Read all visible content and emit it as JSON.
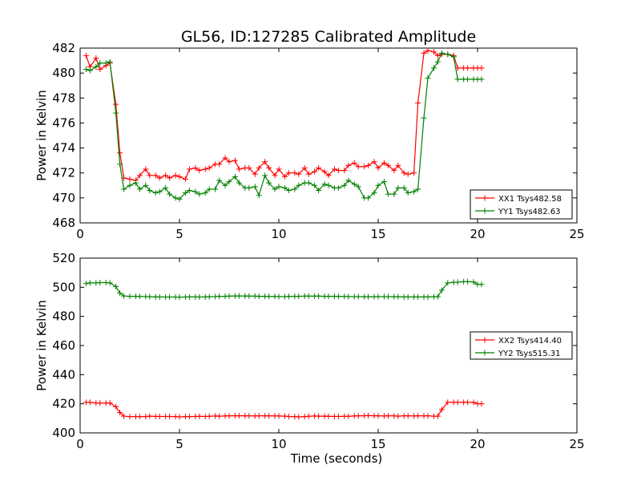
{
  "figure_title": "GL56, ID:127285 Calibrated Amplitude",
  "colors": {
    "red": "#ff0000",
    "green": "#008000"
  },
  "chart_data": [
    {
      "type": "line",
      "title": "GL56, ID:127285 Calibrated Amplitude",
      "xlabel": "",
      "ylabel": "Power in Kelvin",
      "xlim": [
        0,
        25
      ],
      "ylim": [
        468,
        482
      ],
      "xticks": [
        0,
        5,
        10,
        15,
        20,
        25
      ],
      "yticks": [
        468,
        470,
        472,
        474,
        476,
        478,
        480,
        482
      ],
      "legend_position": "lower-right",
      "series": [
        {
          "name": "XX1 Tsys482.58",
          "color": "#ff0000",
          "x": [
            0.3,
            0.5,
            0.8,
            1.0,
            1.3,
            1.5,
            1.8,
            2.0,
            2.2,
            2.5,
            2.8,
            3.0,
            3.3,
            3.5,
            3.8,
            4.0,
            4.3,
            4.5,
            4.8,
            5.0,
            5.3,
            5.5,
            5.8,
            6.0,
            6.3,
            6.5,
            6.8,
            7.0,
            7.3,
            7.5,
            7.8,
            8.0,
            8.3,
            8.5,
            8.8,
            9.0,
            9.3,
            9.5,
            9.8,
            10.0,
            10.3,
            10.5,
            10.8,
            11.0,
            11.3,
            11.5,
            11.8,
            12.0,
            12.3,
            12.5,
            12.8,
            13.0,
            13.3,
            13.5,
            13.8,
            14.0,
            14.3,
            14.5,
            14.8,
            15.0,
            15.3,
            15.5,
            15.8,
            16.0,
            16.3,
            16.5,
            16.8,
            17.0,
            17.3,
            17.5,
            17.8,
            18.0,
            18.2,
            18.5,
            18.8,
            19.0,
            19.3,
            19.5,
            19.8,
            20.0,
            20.2
          ],
          "values": [
            481.4,
            480.5,
            481.2,
            480.3,
            480.6,
            480.8,
            477.5,
            473.6,
            471.6,
            471.5,
            471.4,
            471.8,
            472.3,
            471.8,
            471.8,
            471.6,
            471.8,
            471.6,
            471.8,
            471.7,
            471.5,
            472.3,
            472.4,
            472.2,
            472.3,
            472.4,
            472.7,
            472.7,
            473.2,
            472.9,
            473.0,
            472.3,
            472.4,
            472.4,
            471.9,
            472.4,
            472.9,
            472.4,
            471.8,
            472.3,
            471.7,
            472.0,
            472.0,
            471.9,
            472.4,
            471.9,
            472.1,
            472.4,
            472.1,
            471.8,
            472.3,
            472.2,
            472.2,
            472.6,
            472.8,
            472.5,
            472.5,
            472.6,
            472.9,
            472.4,
            472.8,
            472.6,
            472.2,
            472.6,
            472.0,
            471.9,
            472.0,
            477.6,
            481.6,
            481.8,
            481.7,
            481.4,
            481.5,
            481.5,
            481.4,
            480.4,
            480.4,
            480.4,
            480.4,
            480.4,
            480.4
          ],
          "x_note": ""
        },
        {
          "name": "YY1 Tsys482.63",
          "color": "#008000",
          "x": [
            0.3,
            0.5,
            0.8,
            1.0,
            1.3,
            1.5,
            1.8,
            2.0,
            2.2,
            2.5,
            2.8,
            3.0,
            3.3,
            3.5,
            3.8,
            4.0,
            4.3,
            4.5,
            4.8,
            5.0,
            5.3,
            5.5,
            5.8,
            6.0,
            6.3,
            6.5,
            6.8,
            7.0,
            7.3,
            7.5,
            7.8,
            8.0,
            8.3,
            8.5,
            8.8,
            9.0,
            9.3,
            9.5,
            9.8,
            10.0,
            10.3,
            10.5,
            10.8,
            11.0,
            11.3,
            11.5,
            11.8,
            12.0,
            12.3,
            12.5,
            12.8,
            13.0,
            13.3,
            13.5,
            13.8,
            14.0,
            14.3,
            14.5,
            14.8,
            15.0,
            15.3,
            15.5,
            15.8,
            16.0,
            16.3,
            16.5,
            16.8,
            17.0,
            17.3,
            17.5,
            17.8,
            18.0,
            18.2,
            18.5,
            18.8,
            19.0,
            19.3,
            19.5,
            19.8,
            20.0,
            20.2
          ],
          "values": [
            480.3,
            480.2,
            480.5,
            480.8,
            480.8,
            480.9,
            476.8,
            472.7,
            470.7,
            471.0,
            471.2,
            470.7,
            471.0,
            470.6,
            470.4,
            470.5,
            470.8,
            470.3,
            470.0,
            469.9,
            470.4,
            470.6,
            470.5,
            470.3,
            470.4,
            470.7,
            470.7,
            471.4,
            471.0,
            471.3,
            471.7,
            471.2,
            470.8,
            470.8,
            470.9,
            470.2,
            471.8,
            471.2,
            470.7,
            470.9,
            470.8,
            470.6,
            470.7,
            471.0,
            471.2,
            471.2,
            471.0,
            470.6,
            471.1,
            471.0,
            470.8,
            470.8,
            471.0,
            471.4,
            471.1,
            470.9,
            470.0,
            470.0,
            470.4,
            471.0,
            471.3,
            470.3,
            470.3,
            470.8,
            470.8,
            470.4,
            470.5,
            470.7,
            476.4,
            479.6,
            480.4,
            480.9,
            481.6,
            481.5,
            481.3,
            479.5,
            479.5,
            479.5,
            479.5,
            479.5,
            479.5
          ]
        }
      ]
    },
    {
      "type": "line",
      "title": "",
      "xlabel": "Time (seconds)",
      "ylabel": "Power in Kelvin",
      "xlim": [
        0,
        25
      ],
      "ylim": [
        400,
        520
      ],
      "xticks": [
        0,
        5,
        10,
        15,
        20,
        25
      ],
      "yticks": [
        400,
        420,
        440,
        460,
        480,
        500,
        520
      ],
      "legend_position": "center-right",
      "series": [
        {
          "name": "XX2 Tsys414.40",
          "color": "#ff0000",
          "x": [
            0.3,
            0.5,
            0.8,
            1.0,
            1.3,
            1.5,
            1.8,
            2.0,
            2.2,
            2.5,
            2.8,
            3.0,
            3.3,
            3.5,
            3.8,
            4.0,
            4.3,
            4.5,
            4.8,
            5.0,
            5.3,
            5.5,
            5.8,
            6.0,
            6.3,
            6.5,
            6.8,
            7.0,
            7.3,
            7.5,
            7.8,
            8.0,
            8.3,
            8.5,
            8.8,
            9.0,
            9.3,
            9.5,
            9.8,
            10.0,
            10.3,
            10.5,
            10.8,
            11.0,
            11.3,
            11.5,
            11.8,
            12.0,
            12.3,
            12.5,
            12.8,
            13.0,
            13.3,
            13.5,
            13.8,
            14.0,
            14.3,
            14.5,
            14.8,
            15.0,
            15.3,
            15.5,
            15.8,
            16.0,
            16.3,
            16.5,
            16.8,
            17.0,
            17.3,
            17.5,
            17.8,
            18.0,
            18.2,
            18.5,
            18.8,
            19.0,
            19.3,
            19.5,
            19.8,
            20.0,
            20.2
          ],
          "values": [
            421,
            421,
            420.5,
            420.5,
            420.5,
            420.5,
            418,
            414,
            411.5,
            411.2,
            411.2,
            411.2,
            411.2,
            411.5,
            411.3,
            411.3,
            411.3,
            411.3,
            411.2,
            411,
            411.2,
            411.2,
            411.3,
            411.4,
            411.3,
            411.4,
            411.6,
            411.5,
            411.6,
            411.7,
            411.8,
            411.8,
            411.7,
            411.7,
            411.6,
            411.7,
            411.7,
            411.7,
            411.6,
            411.6,
            411.5,
            411.3,
            411.2,
            411.0,
            411.2,
            411.4,
            411.6,
            411.5,
            411.5,
            411.4,
            411.3,
            411.3,
            411.4,
            411.4,
            411.6,
            411.7,
            411.8,
            411.9,
            411.8,
            411.7,
            411.6,
            411.7,
            411.7,
            411.5,
            411.7,
            411.7,
            411.6,
            411.7,
            411.7,
            411.7,
            411.5,
            411.5,
            416,
            421,
            421,
            421,
            421,
            421,
            421,
            420,
            420
          ]
        },
        {
          "name": "YY2 Tsys515.31",
          "color": "#008000",
          "x": [
            0.3,
            0.5,
            0.8,
            1.0,
            1.3,
            1.5,
            1.8,
            2.0,
            2.2,
            2.5,
            2.8,
            3.0,
            3.3,
            3.5,
            3.8,
            4.0,
            4.3,
            4.5,
            4.8,
            5.0,
            5.3,
            5.5,
            5.8,
            6.0,
            6.3,
            6.5,
            6.8,
            7.0,
            7.3,
            7.5,
            7.8,
            8.0,
            8.3,
            8.5,
            8.8,
            9.0,
            9.3,
            9.5,
            9.8,
            10.0,
            10.3,
            10.5,
            10.8,
            11.0,
            11.3,
            11.5,
            11.8,
            12.0,
            12.3,
            12.5,
            12.8,
            13.0,
            13.3,
            13.5,
            13.8,
            14.0,
            14.3,
            14.5,
            14.8,
            15.0,
            15.3,
            15.5,
            15.8,
            16.0,
            16.3,
            16.5,
            16.8,
            17.0,
            17.3,
            17.5,
            17.8,
            18.0,
            18.2,
            18.5,
            18.8,
            19.0,
            19.3,
            19.5,
            19.8,
            20.0,
            20.2
          ],
          "values": [
            502.5,
            503,
            503,
            503.2,
            503.2,
            503,
            500.5,
            496,
            494,
            493.8,
            493.8,
            493.7,
            493.6,
            493.5,
            493.4,
            493.4,
            493.3,
            493.3,
            493.3,
            493.2,
            493.3,
            493.4,
            493.4,
            493.3,
            493.4,
            493.5,
            493.6,
            493.8,
            493.8,
            493.9,
            494.0,
            494.0,
            494.0,
            493.9,
            493.9,
            493.8,
            493.8,
            493.7,
            493.7,
            493.6,
            493.6,
            493.7,
            493.8,
            493.8,
            493.9,
            493.9,
            493.9,
            493.9,
            493.8,
            493.8,
            493.8,
            493.7,
            493.7,
            493.6,
            493.6,
            493.6,
            493.5,
            493.5,
            493.5,
            493.6,
            493.6,
            493.6,
            493.5,
            493.5,
            493.4,
            493.4,
            493.4,
            493.4,
            493.4,
            493.4,
            493.5,
            493.5,
            498,
            503,
            503.4,
            503.5,
            503.8,
            503.8,
            503.6,
            502,
            502
          ]
        }
      ]
    }
  ]
}
